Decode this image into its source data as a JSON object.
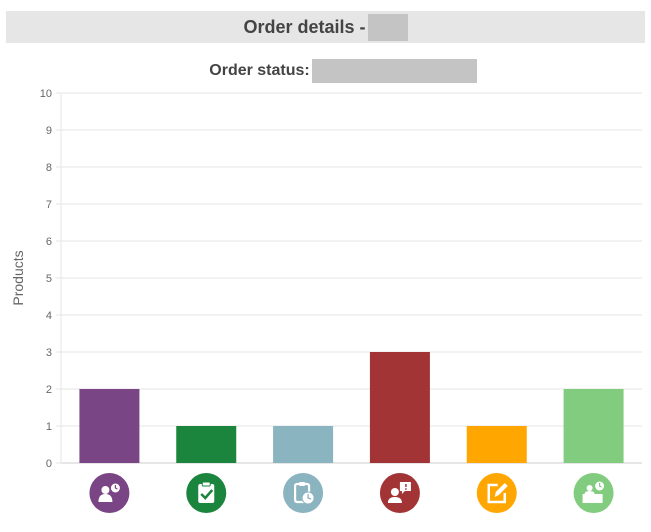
{
  "header": {
    "title": "Order details -"
  },
  "status": {
    "label": "Order status:"
  },
  "colors": {
    "header_bg": "#e6e6e6",
    "redaction": "#c4c4c4",
    "grid": "#e5e5e5",
    "axis": "#cccccc"
  },
  "chart_data": {
    "type": "bar",
    "categories": [
      "",
      "",
      "",
      "",
      "",
      ""
    ],
    "category_icons": [
      "user-clock-icon",
      "check-clipboard-icon",
      "clipboard-clock-icon",
      "user-alert-icon",
      "edit-icon",
      "desk-clock-icon"
    ],
    "values": [
      2,
      1,
      1,
      3,
      1,
      2
    ],
    "colors": [
      "#7a4585",
      "#1b843d",
      "#8ab4bf",
      "#a23436",
      "#ffa600",
      "#82cc7f"
    ],
    "ylabel": "Products",
    "xlabel": "",
    "ylim": [
      0,
      10
    ],
    "yticks": [
      0,
      1,
      2,
      3,
      4,
      5,
      6,
      7,
      8,
      9,
      10
    ],
    "grid": true,
    "legend": "none"
  }
}
